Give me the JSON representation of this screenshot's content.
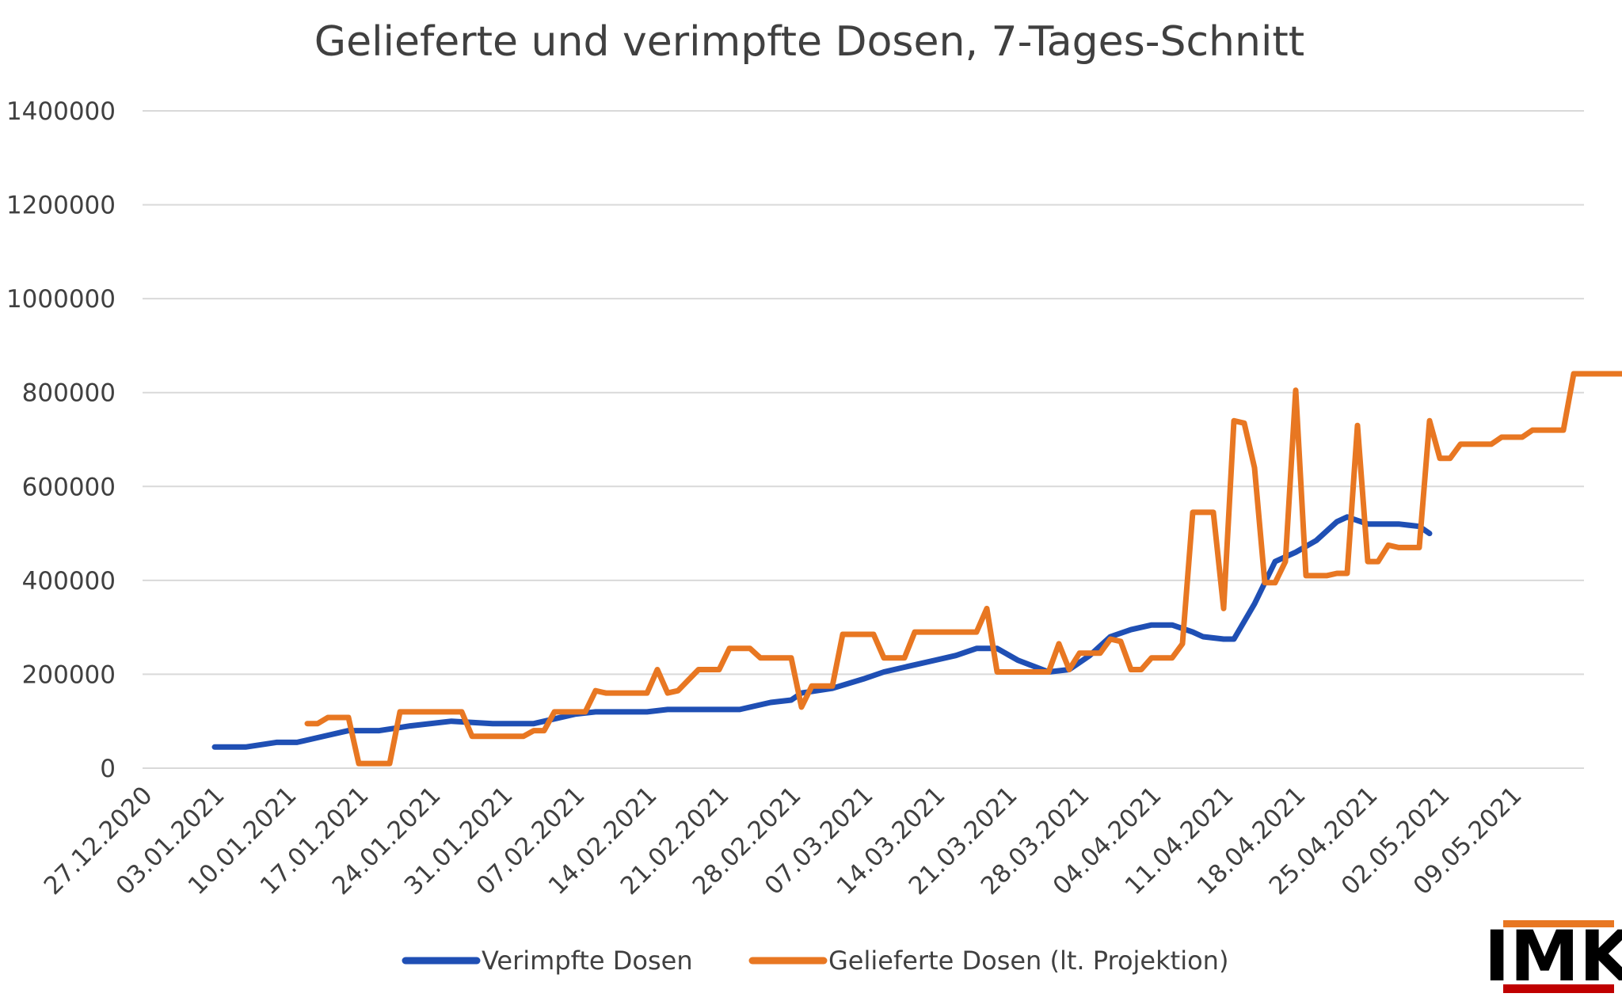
{
  "chart_data": {
    "type": "line",
    "title": "Gelieferte und verimpfte Dosen, 7-Tages-Schnitt",
    "xlabel": "",
    "ylabel": "",
    "ylim": [
      0,
      1400000
    ],
    "yticks": [
      0,
      200000,
      400000,
      600000,
      800000,
      1000000,
      1200000,
      1400000
    ],
    "ytick_labels": [
      "0",
      "200000",
      "400000",
      "600000",
      "800000",
      "1000000",
      "1200000",
      "1400000"
    ],
    "xlim": [
      "2020-12-27",
      "2021-05-16"
    ],
    "xtick_labels": [
      "27.12.2020",
      "03.01.2021",
      "10.01.2021",
      "17.01.2021",
      "24.01.2021",
      "31.01.2021",
      "07.02.2021",
      "14.02.2021",
      "21.02.2021",
      "28.02.2021",
      "07.03.2021",
      "14.03.2021",
      "21.03.2021",
      "28.03.2021",
      "04.04.2021",
      "11.04.2021",
      "18.04.2021",
      "25.04.2021",
      "02.05.2021",
      "09.05.2021"
    ],
    "grid": true,
    "legend_position": "bottom",
    "series": [
      {
        "name": "Verimpfte Dosen",
        "color": "#1f4fb4",
        "points": [
          [
            "2021-01-03",
            45000
          ],
          [
            "2021-01-06",
            45000
          ],
          [
            "2021-01-09",
            55000
          ],
          [
            "2021-01-11",
            55000
          ],
          [
            "2021-01-14",
            70000
          ],
          [
            "2021-01-16",
            80000
          ],
          [
            "2021-01-19",
            80000
          ],
          [
            "2021-01-22",
            90000
          ],
          [
            "2021-01-26",
            100000
          ],
          [
            "2021-01-30",
            95000
          ],
          [
            "2021-02-03",
            95000
          ],
          [
            "2021-02-07",
            115000
          ],
          [
            "2021-02-09",
            120000
          ],
          [
            "2021-02-14",
            120000
          ],
          [
            "2021-02-16",
            125000
          ],
          [
            "2021-02-23",
            125000
          ],
          [
            "2021-02-26",
            140000
          ],
          [
            "2021-02-28",
            145000
          ],
          [
            "2021-03-01",
            160000
          ],
          [
            "2021-03-04",
            170000
          ],
          [
            "2021-03-07",
            190000
          ],
          [
            "2021-03-09",
            205000
          ],
          [
            "2021-03-11",
            215000
          ],
          [
            "2021-03-14",
            230000
          ],
          [
            "2021-03-16",
            240000
          ],
          [
            "2021-03-18",
            255000
          ],
          [
            "2021-03-20",
            255000
          ],
          [
            "2021-03-22",
            230000
          ],
          [
            "2021-03-25",
            205000
          ],
          [
            "2021-03-27",
            210000
          ],
          [
            "2021-03-29",
            240000
          ],
          [
            "2021-03-31",
            280000
          ],
          [
            "2021-04-02",
            295000
          ],
          [
            "2021-04-04",
            305000
          ],
          [
            "2021-04-06",
            305000
          ],
          [
            "2021-04-08",
            290000
          ],
          [
            "2021-04-09",
            280000
          ],
          [
            "2021-04-11",
            275000
          ],
          [
            "2021-04-12",
            275000
          ],
          [
            "2021-04-14",
            350000
          ],
          [
            "2021-04-16",
            440000
          ],
          [
            "2021-04-18",
            460000
          ],
          [
            "2021-04-20",
            485000
          ],
          [
            "2021-04-22",
            525000
          ],
          [
            "2021-04-23",
            535000
          ],
          [
            "2021-04-25",
            520000
          ],
          [
            "2021-04-28",
            520000
          ],
          [
            "2021-04-30",
            515000
          ],
          [
            "2021-05-01",
            500000
          ]
        ]
      },
      {
        "name": "Gelieferte Dosen (lt. Projektion)",
        "color": "#e87722",
        "points": [
          [
            "2021-01-12",
            95000
          ],
          [
            "2021-01-13",
            95000
          ],
          [
            "2021-01-14",
            108000
          ],
          [
            "2021-01-16",
            108000
          ],
          [
            "2021-01-17",
            10000
          ],
          [
            "2021-01-20",
            10000
          ],
          [
            "2021-01-21",
            120000
          ],
          [
            "2021-01-27",
            120000
          ],
          [
            "2021-01-28",
            68000
          ],
          [
            "2021-02-02",
            68000
          ],
          [
            "2021-02-03",
            80000
          ],
          [
            "2021-02-04",
            80000
          ],
          [
            "2021-02-05",
            120000
          ],
          [
            "2021-02-08",
            120000
          ],
          [
            "2021-02-09",
            165000
          ],
          [
            "2021-02-10",
            160000
          ],
          [
            "2021-02-14",
            160000
          ],
          [
            "2021-02-15",
            210000
          ],
          [
            "2021-02-16",
            160000
          ],
          [
            "2021-02-17",
            165000
          ],
          [
            "2021-02-19",
            210000
          ],
          [
            "2021-02-21",
            210000
          ],
          [
            "2021-02-22",
            255000
          ],
          [
            "2021-02-24",
            255000
          ],
          [
            "2021-02-25",
            235000
          ],
          [
            "2021-02-28",
            235000
          ],
          [
            "2021-03-01",
            130000
          ],
          [
            "2021-03-02",
            175000
          ],
          [
            "2021-03-04",
            175000
          ],
          [
            "2021-03-05",
            285000
          ],
          [
            "2021-03-08",
            285000
          ],
          [
            "2021-03-09",
            235000
          ],
          [
            "2021-03-11",
            235000
          ],
          [
            "2021-03-12",
            290000
          ],
          [
            "2021-03-18",
            290000
          ],
          [
            "2021-03-19",
            340000
          ],
          [
            "2021-03-20",
            205000
          ],
          [
            "2021-03-25",
            205000
          ],
          [
            "2021-03-26",
            265000
          ],
          [
            "2021-03-27",
            210000
          ],
          [
            "2021-03-28",
            245000
          ],
          [
            "2021-03-30",
            245000
          ],
          [
            "2021-03-31",
            275000
          ],
          [
            "2021-04-01",
            270000
          ],
          [
            "2021-04-02",
            210000
          ],
          [
            "2021-04-03",
            210000
          ],
          [
            "2021-04-04",
            235000
          ],
          [
            "2021-04-06",
            235000
          ],
          [
            "2021-04-07",
            265000
          ],
          [
            "2021-04-08",
            545000
          ],
          [
            "2021-04-10",
            545000
          ],
          [
            "2021-04-11",
            340000
          ],
          [
            "2021-04-12",
            740000
          ],
          [
            "2021-04-13",
            735000
          ],
          [
            "2021-04-14",
            640000
          ],
          [
            "2021-04-15",
            395000
          ],
          [
            "2021-04-16",
            395000
          ],
          [
            "2021-04-17",
            440000
          ],
          [
            "2021-04-18",
            805000
          ],
          [
            "2021-04-19",
            410000
          ],
          [
            "2021-04-21",
            410000
          ],
          [
            "2021-04-22",
            415000
          ],
          [
            "2021-04-23",
            415000
          ],
          [
            "2021-04-24",
            730000
          ],
          [
            "2021-04-25",
            440000
          ],
          [
            "2021-04-26",
            440000
          ],
          [
            "2021-04-27",
            475000
          ],
          [
            "2021-04-28",
            470000
          ],
          [
            "2021-04-30",
            470000
          ],
          [
            "2021-05-01",
            740000
          ],
          [
            "2021-05-02",
            660000
          ],
          [
            "2021-05-03",
            660000
          ],
          [
            "2021-05-04",
            690000
          ],
          [
            "2021-05-07",
            690000
          ],
          [
            "2021-05-08",
            705000
          ],
          [
            "2021-05-10",
            705000
          ],
          [
            "2021-05-11",
            720000
          ],
          [
            "2021-05-14",
            720000
          ],
          [
            "2021-05-15",
            840000
          ],
          [
            "2021-05-20",
            840000
          ]
        ]
      }
    ]
  },
  "legend": {
    "items": [
      {
        "label": "Verimpfte Dosen",
        "color": "#1f4fb4"
      },
      {
        "label": "Gelieferte Dosen (lt. Projektion)",
        "color": "#e87722"
      }
    ]
  },
  "logo": {
    "text": "IMK",
    "bar_top_color": "#e87722",
    "bar_bottom_color": "#c00000"
  }
}
